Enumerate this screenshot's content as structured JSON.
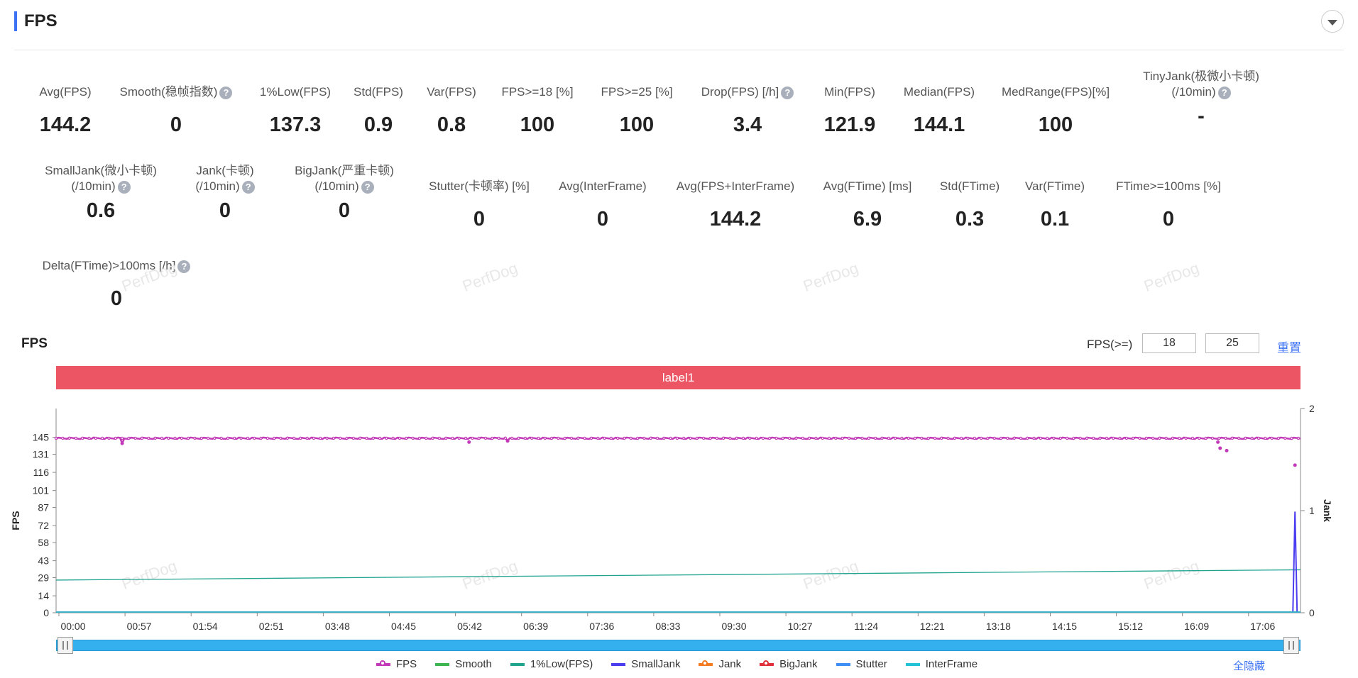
{
  "header": {
    "title": "FPS"
  },
  "metrics_row1": [
    {
      "label": "Avg(FPS)",
      "value": "144.2",
      "help": false
    },
    {
      "label": "Smooth(稳帧指数)",
      "value": "0",
      "help": true
    },
    {
      "label": "1%Low(FPS)",
      "value": "137.3",
      "help": false
    },
    {
      "label": "Std(FPS)",
      "value": "0.9",
      "help": false
    },
    {
      "label": "Var(FPS)",
      "value": "0.8",
      "help": false
    },
    {
      "label": "FPS>=18 [%]",
      "value": "100",
      "help": false
    },
    {
      "label": "FPS>=25 [%]",
      "value": "100",
      "help": false
    },
    {
      "label": "Drop(FPS) [/h]",
      "value": "3.4",
      "help": true
    },
    {
      "label": "Min(FPS)",
      "value": "121.9",
      "help": false
    },
    {
      "label": "Median(FPS)",
      "value": "144.1",
      "help": false
    },
    {
      "label": "MedRange(FPS)[%]",
      "value": "100",
      "help": false
    },
    {
      "label": "TinyJank(极微小卡顿)",
      "label2": "(/10min)",
      "value": "-",
      "help": true
    }
  ],
  "metrics_row2": [
    {
      "label": "SmallJank(微小卡顿)",
      "label2": "(/10min)",
      "value": "0.6",
      "help": true
    },
    {
      "label": "Jank(卡顿)",
      "label2": "(/10min)",
      "value": "0",
      "help": true
    },
    {
      "label": "BigJank(严重卡顿)",
      "label2": "(/10min)",
      "value": "0",
      "help": true
    },
    {
      "label": "Stutter(卡顿率) [%]",
      "value": "0",
      "help": false
    },
    {
      "label": "Avg(InterFrame)",
      "value": "0",
      "help": false
    },
    {
      "label": "Avg(FPS+InterFrame)",
      "value": "144.2",
      "help": false
    },
    {
      "label": "Avg(FTime) [ms]",
      "value": "6.9",
      "help": false
    },
    {
      "label": "Std(FTime)",
      "value": "0.3",
      "help": false
    },
    {
      "label": "Var(FTime)",
      "value": "0.1",
      "help": false
    },
    {
      "label": "FTime>=100ms [%]",
      "value": "0",
      "help": false
    }
  ],
  "metrics_row3": [
    {
      "label": "Delta(FTime)>100ms [/h]",
      "value": "0",
      "help": true
    }
  ],
  "watermark": "PerfDog",
  "chart_section": {
    "title": "FPS",
    "threshold_label": "FPS(>=)",
    "threshold_1": "18",
    "threshold_2": "25",
    "reset_label": "重置",
    "band_label": "label1",
    "hide_all_label": "全隐藏"
  },
  "chart_data": {
    "type": "line",
    "title": "",
    "xlabel": "",
    "ylabel": "FPS",
    "y2label": "Jank",
    "ylim": [
      0,
      160
    ],
    "y2lim": [
      0,
      2
    ],
    "y_ticks": [
      0,
      14,
      29,
      43,
      58,
      72,
      87,
      101,
      116,
      131,
      145
    ],
    "y2_ticks": [
      0,
      1,
      2
    ],
    "x_ticks": [
      "00:00",
      "00:57",
      "01:54",
      "02:51",
      "03:48",
      "04:45",
      "05:42",
      "06:39",
      "07:36",
      "08:33",
      "09:30",
      "10:27",
      "11:24",
      "12:21",
      "13:18",
      "14:15",
      "15:12",
      "16:09",
      "17:06"
    ],
    "x_range_seconds": [
      0,
      1130
    ],
    "series": [
      {
        "name": "FPS",
        "color": "#c23ab7",
        "axis": "left",
        "baseline": 144.2,
        "dips": [
          [
            60,
            140
          ],
          [
            375,
            141
          ],
          [
            410,
            142
          ],
          [
            1055,
            141
          ],
          [
            1063,
            134
          ],
          [
            1057,
            136
          ],
          [
            1125,
            122
          ]
        ]
      },
      {
        "name": "Smooth",
        "color": "#3cb551",
        "axis": "left",
        "constant": 0
      },
      {
        "name": "1%Low(FPS)",
        "color": "#1fa38f",
        "axis": "left",
        "start": 27,
        "end": 35.5
      },
      {
        "name": "SmallJank",
        "color": "#4a3df0",
        "axis": "right",
        "spike_at": 1125,
        "spike_value": 0.99
      },
      {
        "name": "Jank",
        "color": "#f47a1f",
        "axis": "right",
        "constant": 0
      },
      {
        "name": "BigJank",
        "color": "#e0303a",
        "axis": "right",
        "constant": 0
      },
      {
        "name": "Stutter",
        "color": "#3d8ef5",
        "axis": "right",
        "constant": 0
      },
      {
        "name": "InterFrame",
        "color": "#22c3d6",
        "axis": "left",
        "constant": 0
      }
    ]
  }
}
